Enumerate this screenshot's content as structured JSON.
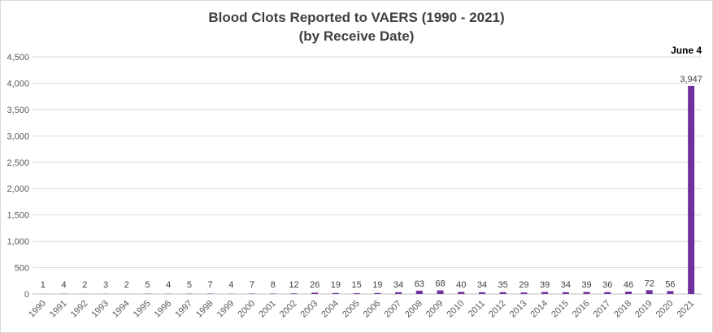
{
  "chart_data": {
    "type": "bar",
    "title": "Blood Clots Reported to VAERS (1990 - 2021)",
    "subtitle": "(by Receive Date)",
    "categories": [
      "1990",
      "1991",
      "1992",
      "1993",
      "1994",
      "1995",
      "1996",
      "1997",
      "1998",
      "1999",
      "2000",
      "2001",
      "2002",
      "2003",
      "2004",
      "2005",
      "2006",
      "2007",
      "2008",
      "2009",
      "2010",
      "2011",
      "2012",
      "2013",
      "2014",
      "2015",
      "2016",
      "2017",
      "2018",
      "2019",
      "2020",
      "2021"
    ],
    "values": [
      1,
      4,
      2,
      3,
      2,
      5,
      4,
      5,
      7,
      4,
      7,
      8,
      12,
      26,
      19,
      15,
      19,
      34,
      63,
      68,
      40,
      34,
      35,
      29,
      39,
      34,
      39,
      36,
      46,
      72,
      56,
      3947
    ],
    "data_labels": [
      "1",
      "4",
      "2",
      "3",
      "2",
      "5",
      "4",
      "5",
      "7",
      "4",
      "7",
      "8",
      "12",
      "26",
      "19",
      "15",
      "19",
      "34",
      "63",
      "68",
      "40",
      "34",
      "35",
      "29",
      "39",
      "34",
      "39",
      "36",
      "46",
      "72",
      "56",
      "3,947"
    ],
    "ylim": [
      0,
      4500
    ],
    "yticks": [
      "0",
      "500",
      "1,000",
      "1,500",
      "2,000",
      "2,500",
      "3,000",
      "3,500",
      "4,000",
      "4,500"
    ],
    "grid": true,
    "bar_color": "#7030a0",
    "annotation": "June 4"
  }
}
